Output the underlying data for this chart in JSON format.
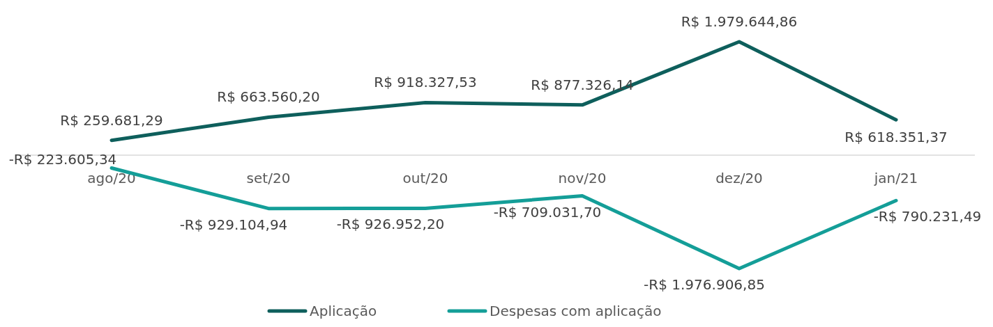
{
  "chart_data": {
    "type": "line",
    "categories": [
      "ago/20",
      "set/20",
      "out/20",
      "nov/20",
      "dez/20",
      "jan/21"
    ],
    "series": [
      {
        "name": "Aplicação",
        "color": "#0e5f5c",
        "values": [
          259681.29,
          663560.2,
          918327.53,
          877326.14,
          1979644.86,
          618351.37
        ],
        "value_labels": [
          "R$ 259.681,29",
          "R$ 663.560,20",
          "R$ 918.327,53",
          "R$ 877.326,14",
          "R$ 1.979.644,86",
          "R$ 618.351,37"
        ]
      },
      {
        "name": "Despesas com aplicação",
        "color": "#149e98",
        "values": [
          -223605.34,
          -929104.94,
          -926952.2,
          -709031.7,
          -1976906.85,
          -790231.49
        ],
        "value_labels": [
          "-R$ 223.605,34",
          "-R$ 929.104,94",
          "-R$ 926.952,20",
          "-R$ 709.031,70",
          "-R$ 1.976.906,85",
          "-R$ 790.231,49"
        ]
      }
    ],
    "tick_labels": "x",
    "legend": "bottom",
    "marker": "none",
    "line_style": "solid",
    "grid": false
  }
}
